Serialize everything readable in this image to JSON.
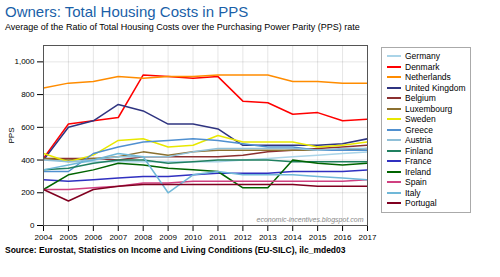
{
  "chart_data": {
    "type": "line",
    "title": "Owners: Total Housing Costs in PPS",
    "subtitle": "Average of the Ratio of Total Housing Costs over the Purchasing Power Parity (PPS) rate",
    "ylabel": "PPS",
    "annotations": [
      "Source: Eurostat, Statistics on Income and Living Conditions (EU-SILC), ilc_mded03",
      "economic-incentives.blogspot.com"
    ],
    "x": [
      2004,
      2005,
      2006,
      2007,
      2008,
      2009,
      2010,
      2011,
      2012,
      2013,
      2014,
      2015,
      2016,
      2017
    ],
    "series": [
      {
        "name": "Germany",
        "color": "#aad4e8",
        "values": [
          410,
          390,
          390,
          390,
          390,
          390,
          390,
          390,
          400,
          410,
          420,
          430,
          440,
          450
        ]
      },
      {
        "name": "Denmark",
        "color": "#ff0000",
        "values": [
          410,
          620,
          640,
          660,
          920,
          910,
          900,
          910,
          760,
          750,
          680,
          690,
          640,
          650
        ]
      },
      {
        "name": "Netherlands",
        "color": "#ff8c00",
        "values": [
          840,
          870,
          880,
          910,
          900,
          910,
          910,
          920,
          920,
          920,
          880,
          880,
          870,
          870
        ]
      },
      {
        "name": "United Kingdom",
        "color": "#2f3480",
        "values": [
          400,
          600,
          640,
          740,
          700,
          620,
          620,
          590,
          490,
          490,
          490,
          490,
          500,
          530
        ]
      },
      {
        "name": "Belgium",
        "color": "#8b3030",
        "values": [
          410,
          410,
          410,
          400,
          420,
          420,
          420,
          420,
          430,
          450,
          460,
          470,
          480,
          490
        ]
      },
      {
        "name": "Luxembourg",
        "color": "#8b7030",
        "values": [
          410,
          400,
          410,
          420,
          450,
          430,
          450,
          460,
          460,
          460,
          460,
          460,
          460,
          470
        ]
      },
      {
        "name": "Sweden",
        "color": "#e8e800",
        "values": [
          440,
          390,
          430,
          520,
          530,
          480,
          490,
          550,
          510,
          510,
          510,
          480,
          490,
          510
        ]
      },
      {
        "name": "Greece",
        "color": "#5090d0",
        "values": [
          330,
          330,
          440,
          480,
          510,
          520,
          530,
          520,
          500,
          480,
          480,
          460,
          460,
          460
        ]
      },
      {
        "name": "Austria",
        "color": "#90c0d8",
        "values": [
          400,
          390,
          400,
          420,
          420,
          420,
          450,
          470,
          470,
          470,
          470,
          460,
          470,
          470
        ]
      },
      {
        "name": "Finland",
        "color": "#208060",
        "values": [
          340,
          350,
          380,
          400,
          400,
          380,
          390,
          400,
          400,
          400,
          390,
          390,
          390,
          390
        ]
      },
      {
        "name": "France",
        "color": "#3030c0",
        "values": [
          280,
          270,
          280,
          290,
          300,
          300,
          310,
          320,
          320,
          320,
          330,
          330,
          330,
          340
        ]
      },
      {
        "name": "Ireland",
        "color": "#006400",
        "values": [
          220,
          310,
          340,
          380,
          370,
          350,
          340,
          330,
          230,
          230,
          400,
          380,
          370,
          380
        ]
      },
      {
        "name": "Spain",
        "color": "#d04080",
        "values": [
          220,
          220,
          230,
          240,
          260,
          260,
          270,
          270,
          270,
          270,
          270,
          270,
          270,
          280
        ]
      },
      {
        "name": "Italy",
        "color": "#70b8d8",
        "values": [
          340,
          370,
          400,
          440,
          420,
          200,
          310,
          330,
          310,
          310,
          310,
          300,
          290,
          280
        ]
      },
      {
        "name": "Portugal",
        "color": "#800020",
        "values": [
          220,
          150,
          220,
          240,
          250,
          250,
          250,
          250,
          250,
          250,
          250,
          240,
          240,
          240
        ]
      }
    ],
    "xlim": [
      2004,
      2017
    ],
    "xticks": [
      2004,
      2005,
      2006,
      2007,
      2008,
      2009,
      2010,
      2011,
      2012,
      2013,
      2014,
      2015,
      2016,
      2017
    ],
    "ylim": [
      0,
      1100
    ],
    "yticks": [
      0,
      200,
      400,
      600,
      800,
      {
        "value": 1000,
        "label": "1,000"
      }
    ],
    "grid": true,
    "legend": "right"
  }
}
